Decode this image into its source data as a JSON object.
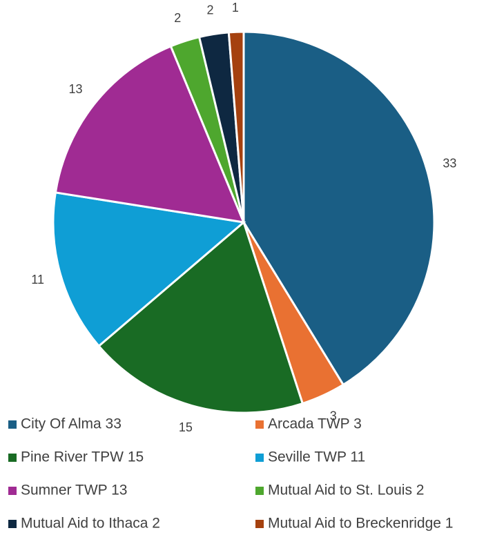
{
  "chart_data": {
    "type": "pie",
    "categories": [
      "City Of Alma 33",
      "Arcada TWP 3",
      "Pine River TPW 15",
      "Seville TWP 11",
      "Sumner TWP 13",
      "Mutual Aid to St. Louis 2",
      "Mutual Aid to Ithaca 2",
      "Mutual Aid to Breckenridge 1"
    ],
    "values": [
      33,
      3,
      15,
      11,
      13,
      2,
      2,
      1
    ],
    "colors": [
      "#1a5e85",
      "#e97132",
      "#196b24",
      "#0f9ed5",
      "#a02b93",
      "#4ea72e",
      "#0e2841",
      "#a5410f"
    ],
    "legend": "bottom"
  }
}
